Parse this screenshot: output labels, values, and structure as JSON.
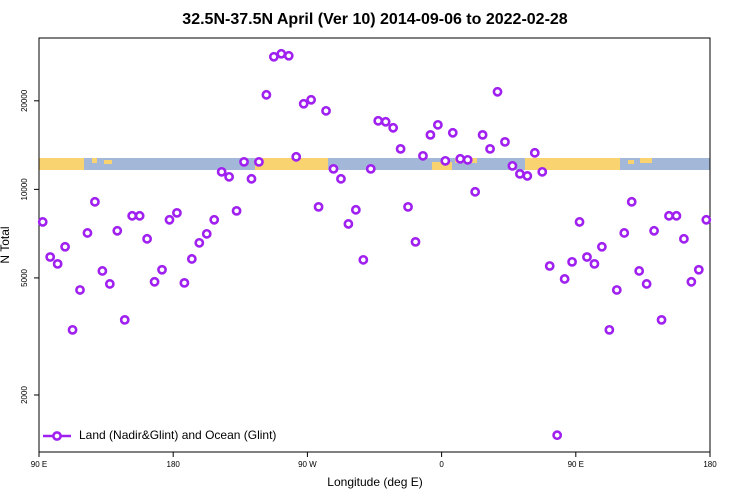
{
  "chart_data": {
    "type": "scatter",
    "title": "32.5N-37.5N April (Ver 10)   2014-09-06 to 2022-02-28",
    "x_label": "Longitude (deg E)",
    "y_label": "N Total",
    "x": [
      92.5,
      97.5,
      102.5,
      107.5,
      112.5,
      117.5,
      122.5,
      127.5,
      132.5,
      137.5,
      142.5,
      147.5,
      152.5,
      157.5,
      162.5,
      167.5,
      172.5,
      177.5,
      182.5,
      187.5,
      192.5,
      197.5,
      202.5,
      207.5,
      212.5,
      217.5,
      222.5,
      227.5,
      232.5,
      237.5,
      242.5,
      247.5,
      252.5,
      257.5,
      262.5,
      267.5,
      272.5,
      277.5,
      282.5,
      287.5,
      292.5,
      297.5,
      302.5,
      307.5,
      312.5,
      317.5,
      322.5,
      327.5,
      332.5,
      337.5,
      342.5,
      347.5,
      352.5,
      357.5,
      362.5,
      367.5,
      372.5,
      377.5,
      382.5,
      387.5,
      392.5,
      397.5,
      402.5,
      407.5,
      412.5,
      417.5,
      422.5,
      427.5,
      432.5,
      437.5,
      442.5,
      447.5,
      452.5,
      457.5,
      462.5,
      467.5,
      472.5,
      477.5,
      482.5,
      487.5,
      492.5,
      497.5,
      502.5,
      507.5,
      512.5,
      517.5,
      522.5,
      527.5,
      532.5,
      537.5
    ],
    "series": [
      {
        "name": "Land (Nadir&Glint) and Ocean (Glint)",
        "color": "#a020f0",
        "values": [
          7750,
          5890,
          5580,
          6380,
          3330,
          4550,
          7110,
          9070,
          5280,
          4770,
          7230,
          3600,
          8130,
          8130,
          6790,
          4850,
          5330,
          7880,
          8320,
          4810,
          5800,
          6580,
          7060,
          7880,
          11470,
          11030,
          8450,
          12400,
          10860,
          12400,
          20960,
          28230,
          28900,
          28450,
          12900,
          19540,
          20160,
          8720,
          18490,
          11740,
          10860,
          7630,
          8520,
          5760,
          11740,
          17100,
          16970,
          16190,
          13730,
          8720,
          6630,
          13000,
          15320,
          16570,
          12500,
          15570,
          12700,
          12600,
          9810,
          15320,
          13730,
          21460,
          14500,
          12020,
          11290,
          11110,
          13310,
          11470,
          5490,
          1460,
          4960,
          5670,
          7750,
          5890,
          5580,
          6380,
          3330,
          4550,
          7110,
          9070,
          5280,
          4770,
          7230,
          3600,
          8130,
          8130,
          6790,
          4850,
          5330,
          7880
        ]
      }
    ],
    "xlim": [
      90,
      540
    ],
    "xticks": [
      {
        "value": 90,
        "label": "90 E"
      },
      180,
      {
        "value": 270,
        "label": "90 W"
      },
      {
        "value": 360,
        "label": "0"
      },
      {
        "value": 450,
        "label": "90 E"
      },
      {
        "value": 540,
        "label": "180"
      }
    ],
    "ylim": [
      1280,
      32700
    ],
    "yscale": "log",
    "yticks": [
      2000,
      5000,
      10000,
      20000
    ],
    "legend": "bottom left"
  }
}
